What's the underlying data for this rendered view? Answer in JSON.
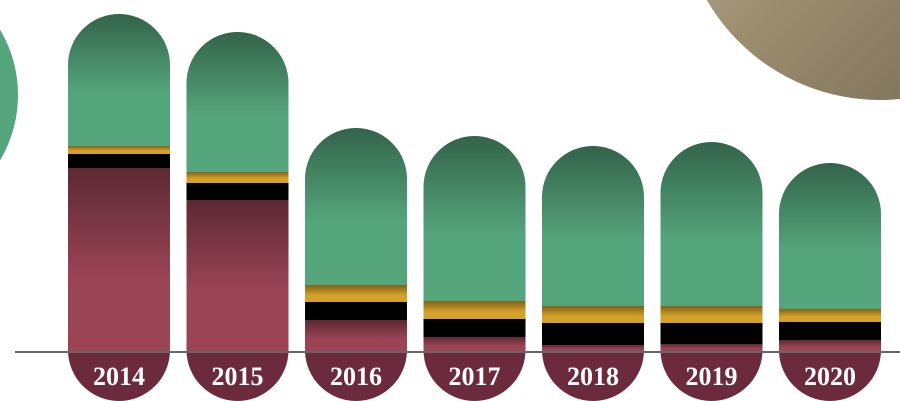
{
  "chart_data": {
    "type": "bar",
    "stacked": true,
    "categories": [
      "2014",
      "2015",
      "2016",
      "2017",
      "2018",
      "2019",
      "2020"
    ],
    "series": [
      {
        "color": "#9a4456",
        "values": [
          184,
          152,
          32,
          15,
          7,
          8,
          12
        ]
      },
      {
        "color": "#000000",
        "values": [
          14,
          17,
          18,
          18,
          22,
          21,
          18
        ]
      },
      {
        "color": "#d4a12a",
        "values": [
          8,
          11,
          17,
          18,
          17,
          17,
          13
        ]
      },
      {
        "color": "#55a57c",
        "values": [
          132,
          140,
          157,
          165,
          160,
          164,
          146
        ]
      }
    ]
  }
}
